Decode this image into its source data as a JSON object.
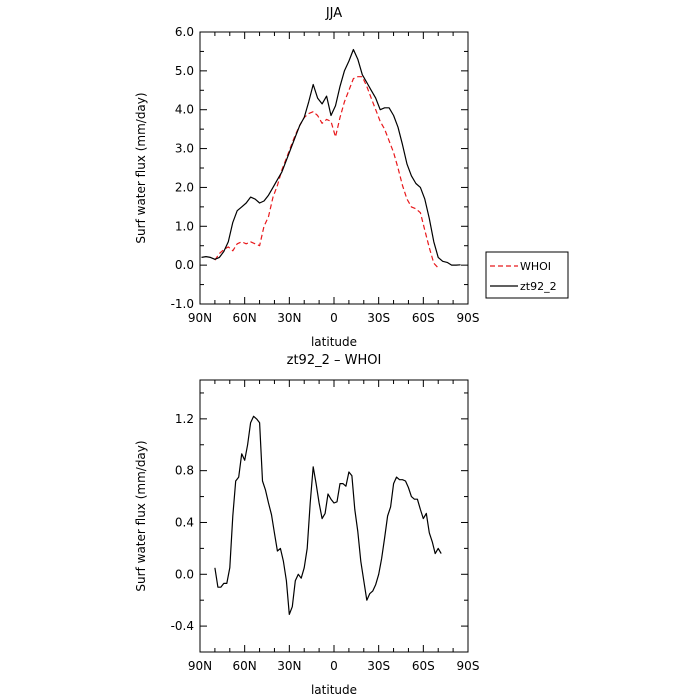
{
  "chart_data": [
    {
      "type": "line",
      "title": "JJA",
      "xlabel": "latitude",
      "ylabel": "Surf water flux (mm/day)",
      "xlim": [
        90,
        -90
      ],
      "ylim": [
        -1.0,
        6.0
      ],
      "x_ticks": [
        90,
        60,
        30,
        0,
        -30,
        -60,
        -90
      ],
      "x_tick_labels": [
        "90N",
        "60N",
        "30N",
        "0",
        "30S",
        "60S",
        "90S"
      ],
      "y_ticks": [
        -1,
        0,
        1,
        2,
        3,
        4,
        5,
        6
      ],
      "y_tick_labels": [
        "-1.0",
        "0.0",
        "1.0",
        "2.0",
        "3.0",
        "4.0",
        "5.0",
        "6.0"
      ],
      "legend": {
        "placement": "outside right",
        "entries": [
          "WHOI",
          "zt92_2"
        ]
      },
      "series": [
        {
          "name": "WHOI",
          "color": "#e8191c",
          "dash": "dashed",
          "points": [
            [
              80,
              0.13
            ],
            [
              77,
              0.3
            ],
            [
              74,
              0.4
            ],
            [
              71,
              0.47
            ],
            [
              68,
              0.37
            ],
            [
              65,
              0.55
            ],
            [
              62,
              0.6
            ],
            [
              59,
              0.55
            ],
            [
              56,
              0.6
            ],
            [
              53,
              0.55
            ],
            [
              50,
              0.5
            ],
            [
              47,
              1.0
            ],
            [
              44,
              1.25
            ],
            [
              41,
              1.75
            ],
            [
              38,
              2.05
            ],
            [
              35,
              2.45
            ],
            [
              32,
              2.75
            ],
            [
              29,
              3.05
            ],
            [
              26,
              3.35
            ],
            [
              23,
              3.6
            ],
            [
              20,
              3.8
            ],
            [
              17,
              3.9
            ],
            [
              14,
              3.95
            ],
            [
              11,
              3.85
            ],
            [
              8,
              3.65
            ],
            [
              5,
              3.75
            ],
            [
              2,
              3.7
            ],
            [
              -1,
              3.3
            ],
            [
              -4,
              3.8
            ],
            [
              -7,
              4.2
            ],
            [
              -10,
              4.5
            ],
            [
              -13,
              4.8
            ],
            [
              -16,
              4.85
            ],
            [
              -19,
              4.85
            ],
            [
              -22,
              4.6
            ],
            [
              -25,
              4.3
            ],
            [
              -28,
              4.0
            ],
            [
              -31,
              3.7
            ],
            [
              -34,
              3.5
            ],
            [
              -37,
              3.2
            ],
            [
              -40,
              2.9
            ],
            [
              -43,
              2.5
            ],
            [
              -46,
              2.05
            ],
            [
              -49,
              1.7
            ],
            [
              -52,
              1.5
            ],
            [
              -55,
              1.45
            ],
            [
              -58,
              1.35
            ],
            [
              -61,
              0.9
            ],
            [
              -64,
              0.45
            ],
            [
              -67,
              0.05
            ],
            [
              -70,
              -0.07
            ]
          ]
        },
        {
          "name": "zt92_2",
          "color": "#000000",
          "dash": "solid",
          "points": [
            [
              89,
              0.2
            ],
            [
              86,
              0.22
            ],
            [
              83,
              0.2
            ],
            [
              80,
              0.15
            ],
            [
              77,
              0.2
            ],
            [
              74,
              0.35
            ],
            [
              71,
              0.6
            ],
            [
              68,
              1.1
            ],
            [
              65,
              1.4
            ],
            [
              62,
              1.5
            ],
            [
              59,
              1.6
            ],
            [
              56,
              1.75
            ],
            [
              53,
              1.7
            ],
            [
              50,
              1.6
            ],
            [
              47,
              1.65
            ],
            [
              44,
              1.8
            ],
            [
              41,
              2.0
            ],
            [
              38,
              2.2
            ],
            [
              35,
              2.4
            ],
            [
              32,
              2.7
            ],
            [
              29,
              3.0
            ],
            [
              26,
              3.3
            ],
            [
              23,
              3.6
            ],
            [
              20,
              3.8
            ],
            [
              17,
              4.2
            ],
            [
              14,
              4.65
            ],
            [
              11,
              4.3
            ],
            [
              8,
              4.15
            ],
            [
              5,
              4.35
            ],
            [
              2,
              3.85
            ],
            [
              -1,
              4.1
            ],
            [
              -4,
              4.6
            ],
            [
              -7,
              5.0
            ],
            [
              -10,
              5.25
            ],
            [
              -13,
              5.55
            ],
            [
              -16,
              5.3
            ],
            [
              -19,
              4.9
            ],
            [
              -22,
              4.7
            ],
            [
              -25,
              4.5
            ],
            [
              -28,
              4.3
            ],
            [
              -31,
              4.0
            ],
            [
              -34,
              4.05
            ],
            [
              -37,
              4.05
            ],
            [
              -40,
              3.85
            ],
            [
              -43,
              3.55
            ],
            [
              -46,
              3.1
            ],
            [
              -49,
              2.6
            ],
            [
              -52,
              2.3
            ],
            [
              -55,
              2.1
            ],
            [
              -58,
              2.0
            ],
            [
              -61,
              1.7
            ],
            [
              -64,
              1.2
            ],
            [
              -67,
              0.6
            ],
            [
              -70,
              0.2
            ],
            [
              -73,
              0.1
            ],
            [
              -76,
              0.07
            ],
            [
              -79,
              0.0
            ],
            [
              -82,
              0.0
            ],
            [
              -85,
              0.01
            ]
          ]
        }
      ]
    },
    {
      "type": "line",
      "title": "zt92_2 – WHOI",
      "xlabel": "latitude",
      "ylabel": "Surf water flux (mm/day)",
      "xlim": [
        90,
        -90
      ],
      "ylim": [
        -0.6,
        1.5
      ],
      "x_ticks": [
        90,
        60,
        30,
        0,
        -30,
        -60,
        -90
      ],
      "x_tick_labels": [
        "90N",
        "60N",
        "30N",
        "0",
        "30S",
        "60S",
        "90S"
      ],
      "y_ticks": [
        -0.4,
        0.0,
        0.4,
        0.8,
        1.2
      ],
      "y_tick_labels": [
        "-0.4",
        "0.0",
        "0.4",
        "0.8",
        "1.2"
      ],
      "series": [
        {
          "color": "#000000",
          "dash": "solid",
          "points": [
            [
              80,
              0.05
            ],
            [
              78,
              -0.1
            ],
            [
              76,
              -0.1
            ],
            [
              74,
              -0.07
            ],
            [
              72,
              -0.07
            ],
            [
              70,
              0.05
            ],
            [
              68,
              0.45
            ],
            [
              66,
              0.72
            ],
            [
              64,
              0.75
            ],
            [
              62,
              0.93
            ],
            [
              60,
              0.88
            ],
            [
              58,
              1.0
            ],
            [
              56,
              1.17
            ],
            [
              54,
              1.22
            ],
            [
              52,
              1.2
            ],
            [
              50,
              1.17
            ],
            [
              48,
              0.72
            ],
            [
              46,
              0.65
            ],
            [
              44,
              0.55
            ],
            [
              42,
              0.46
            ],
            [
              40,
              0.32
            ],
            [
              38,
              0.18
            ],
            [
              36,
              0.2
            ],
            [
              34,
              0.1
            ],
            [
              32,
              -0.05
            ],
            [
              30,
              -0.31
            ],
            [
              28,
              -0.25
            ],
            [
              26,
              -0.05
            ],
            [
              24,
              0.0
            ],
            [
              22,
              -0.03
            ],
            [
              20,
              0.05
            ],
            [
              18,
              0.2
            ],
            [
              16,
              0.55
            ],
            [
              14,
              0.83
            ],
            [
              12,
              0.7
            ],
            [
              10,
              0.55
            ],
            [
              8,
              0.43
            ],
            [
              6,
              0.47
            ],
            [
              4,
              0.62
            ],
            [
              2,
              0.58
            ],
            [
              0,
              0.55
            ],
            [
              -2,
              0.56
            ],
            [
              -4,
              0.7
            ],
            [
              -6,
              0.7
            ],
            [
              -8,
              0.68
            ],
            [
              -10,
              0.79
            ],
            [
              -12,
              0.76
            ],
            [
              -14,
              0.5
            ],
            [
              -16,
              0.33
            ],
            [
              -18,
              0.1
            ],
            [
              -20,
              -0.05
            ],
            [
              -22,
              -0.2
            ],
            [
              -24,
              -0.15
            ],
            [
              -26,
              -0.13
            ],
            [
              -28,
              -0.08
            ],
            [
              -30,
              0.0
            ],
            [
              -32,
              0.12
            ],
            [
              -34,
              0.28
            ],
            [
              -36,
              0.45
            ],
            [
              -38,
              0.52
            ],
            [
              -40,
              0.7
            ],
            [
              -42,
              0.75
            ],
            [
              -44,
              0.73
            ],
            [
              -46,
              0.73
            ],
            [
              -48,
              0.72
            ],
            [
              -50,
              0.67
            ],
            [
              -52,
              0.6
            ],
            [
              -54,
              0.58
            ],
            [
              -56,
              0.58
            ],
            [
              -58,
              0.5
            ],
            [
              -60,
              0.43
            ],
            [
              -62,
              0.47
            ],
            [
              -64,
              0.32
            ],
            [
              -66,
              0.25
            ],
            [
              -68,
              0.16
            ],
            [
              -70,
              0.2
            ],
            [
              -72,
              0.16
            ]
          ]
        }
      ]
    }
  ]
}
